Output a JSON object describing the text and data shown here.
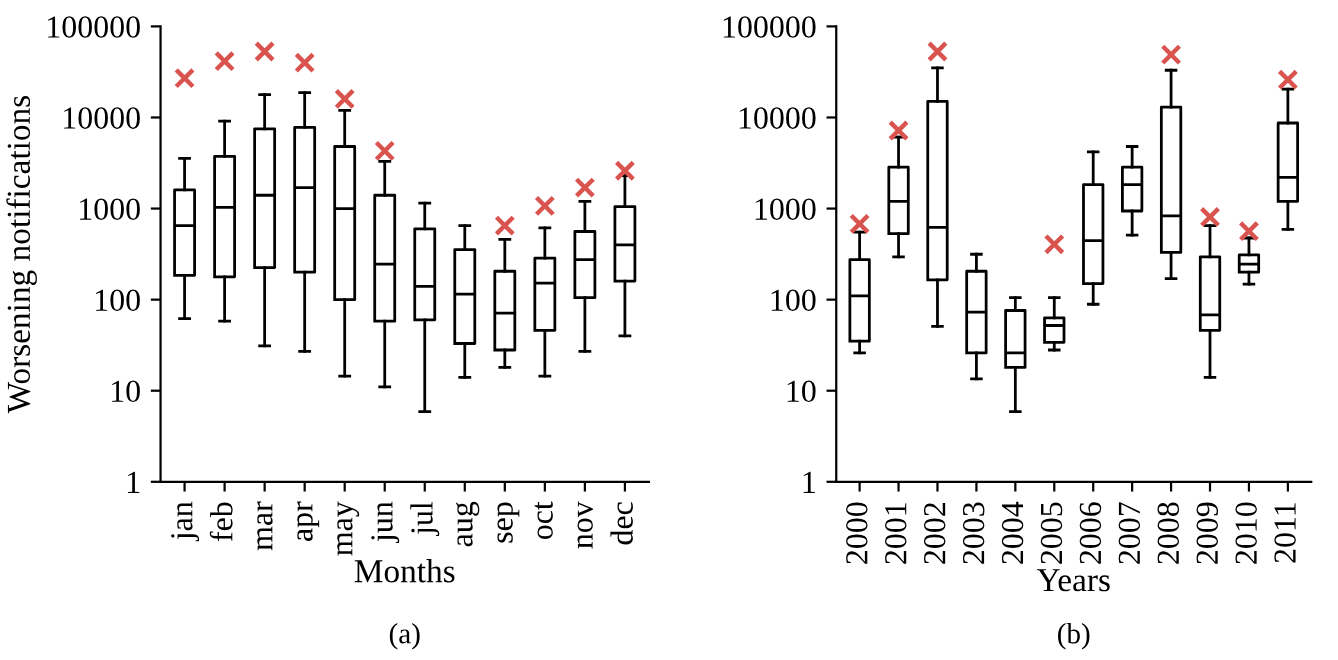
{
  "chart_data": [
    {
      "type": "box",
      "ylabel": "Worsening notifications",
      "xlabel": "Months",
      "annotations": [
        "(a)"
      ],
      "log": "y",
      "ylim": [
        1,
        100000
      ],
      "yticks": [
        1,
        10,
        100,
        1000,
        10000,
        100000
      ],
      "categories": [
        "jan",
        "feb",
        "mar",
        "apr",
        "may",
        "jun",
        "jul",
        "aug",
        "sep",
        "oct",
        "nov",
        "dec"
      ],
      "series": [
        {
          "color": "#000000",
          "boxes": [
            {
              "low": 62,
              "q1": 185,
              "median": 650,
              "q3": 1600,
              "high": 3550
            },
            {
              "low": 58,
              "q1": 178,
              "median": 1030,
              "q3": 3750,
              "high": 9100
            },
            {
              "low": 31,
              "q1": 225,
              "median": 1400,
              "q3": 7500,
              "high": 17800
            },
            {
              "low": 27,
              "q1": 200,
              "median": 1700,
              "q3": 7800,
              "high": 18700
            },
            {
              "low": 14.5,
              "q1": 100,
              "median": 1000,
              "q3": 4800,
              "high": 12000
            },
            {
              "low": 11,
              "q1": 58,
              "median": 245,
              "q3": 1400,
              "high": 3300
            },
            {
              "low": 5.9,
              "q1": 60,
              "median": 140,
              "q3": 600,
              "high": 1150
            },
            {
              "low": 14,
              "q1": 33,
              "median": 115,
              "q3": 355,
              "high": 650
            },
            {
              "low": 18,
              "q1": 28,
              "median": 71,
              "q3": 205,
              "high": 460
            },
            {
              "low": 14.5,
              "q1": 46,
              "median": 152,
              "q3": 285,
              "high": 615
            },
            {
              "low": 27,
              "q1": 105,
              "median": 275,
              "q3": 560,
              "high": 1200
            },
            {
              "low": 40,
              "q1": 160,
              "median": 400,
              "q3": 1050,
              "high": 2300
            }
          ]
        },
        {
          "type": "scatter",
          "color": "#d9534f",
          "marker": "cross",
          "values": [
            27000,
            41500,
            53000,
            40000,
            16000,
            4300,
            null,
            null,
            650,
            1070,
            1700,
            2600
          ]
        }
      ]
    },
    {
      "type": "box",
      "xlabel": "Years",
      "annotations": [
        "(b)"
      ],
      "log": "y",
      "ylim": [
        1,
        100000
      ],
      "yticks": [
        1,
        10,
        100,
        1000,
        10000,
        100000
      ],
      "categories": [
        "2000",
        "2001",
        "2002",
        "2003",
        "2004",
        "2005",
        "2006",
        "2007",
        "2008",
        "2009",
        "2010",
        "2011"
      ],
      "series": [
        {
          "color": "#000000",
          "boxes": [
            {
              "low": 26,
              "q1": 35,
              "median": 110,
              "q3": 275,
              "high": 550
            },
            {
              "low": 295,
              "q1": 530,
              "median": 1200,
              "q3": 2850,
              "high": 6100
            },
            {
              "low": 51,
              "q1": 165,
              "median": 620,
              "q3": 15000,
              "high": 35000
            },
            {
              "low": 13.5,
              "q1": 26,
              "median": 73,
              "q3": 205,
              "high": 315
            },
            {
              "low": 5.9,
              "q1": 18,
              "median": 26,
              "q3": 76,
              "high": 105
            },
            {
              "low": 28,
              "q1": 34,
              "median": 52,
              "q3": 63,
              "high": 105
            },
            {
              "low": 89,
              "q1": 150,
              "median": 445,
              "q3": 1830,
              "high": 4200
            },
            {
              "low": 510,
              "q1": 940,
              "median": 1830,
              "q3": 2850,
              "high": 4800
            },
            {
              "low": 170,
              "q1": 330,
              "median": 830,
              "q3": 13000,
              "high": 33000
            },
            {
              "low": 14,
              "q1": 46,
              "median": 68,
              "q3": 295,
              "high": 650
            },
            {
              "low": 148,
              "q1": 200,
              "median": 245,
              "q3": 310,
              "high": 475
            },
            {
              "low": 590,
              "q1": 1200,
              "median": 2200,
              "q3": 8700,
              "high": 20500
            }
          ]
        },
        {
          "type": "scatter",
          "color": "#d9534f",
          "marker": "cross",
          "values": [
            680,
            7200,
            53000,
            null,
            null,
            405,
            null,
            null,
            49000,
            810,
            565,
            26000
          ]
        }
      ]
    }
  ]
}
